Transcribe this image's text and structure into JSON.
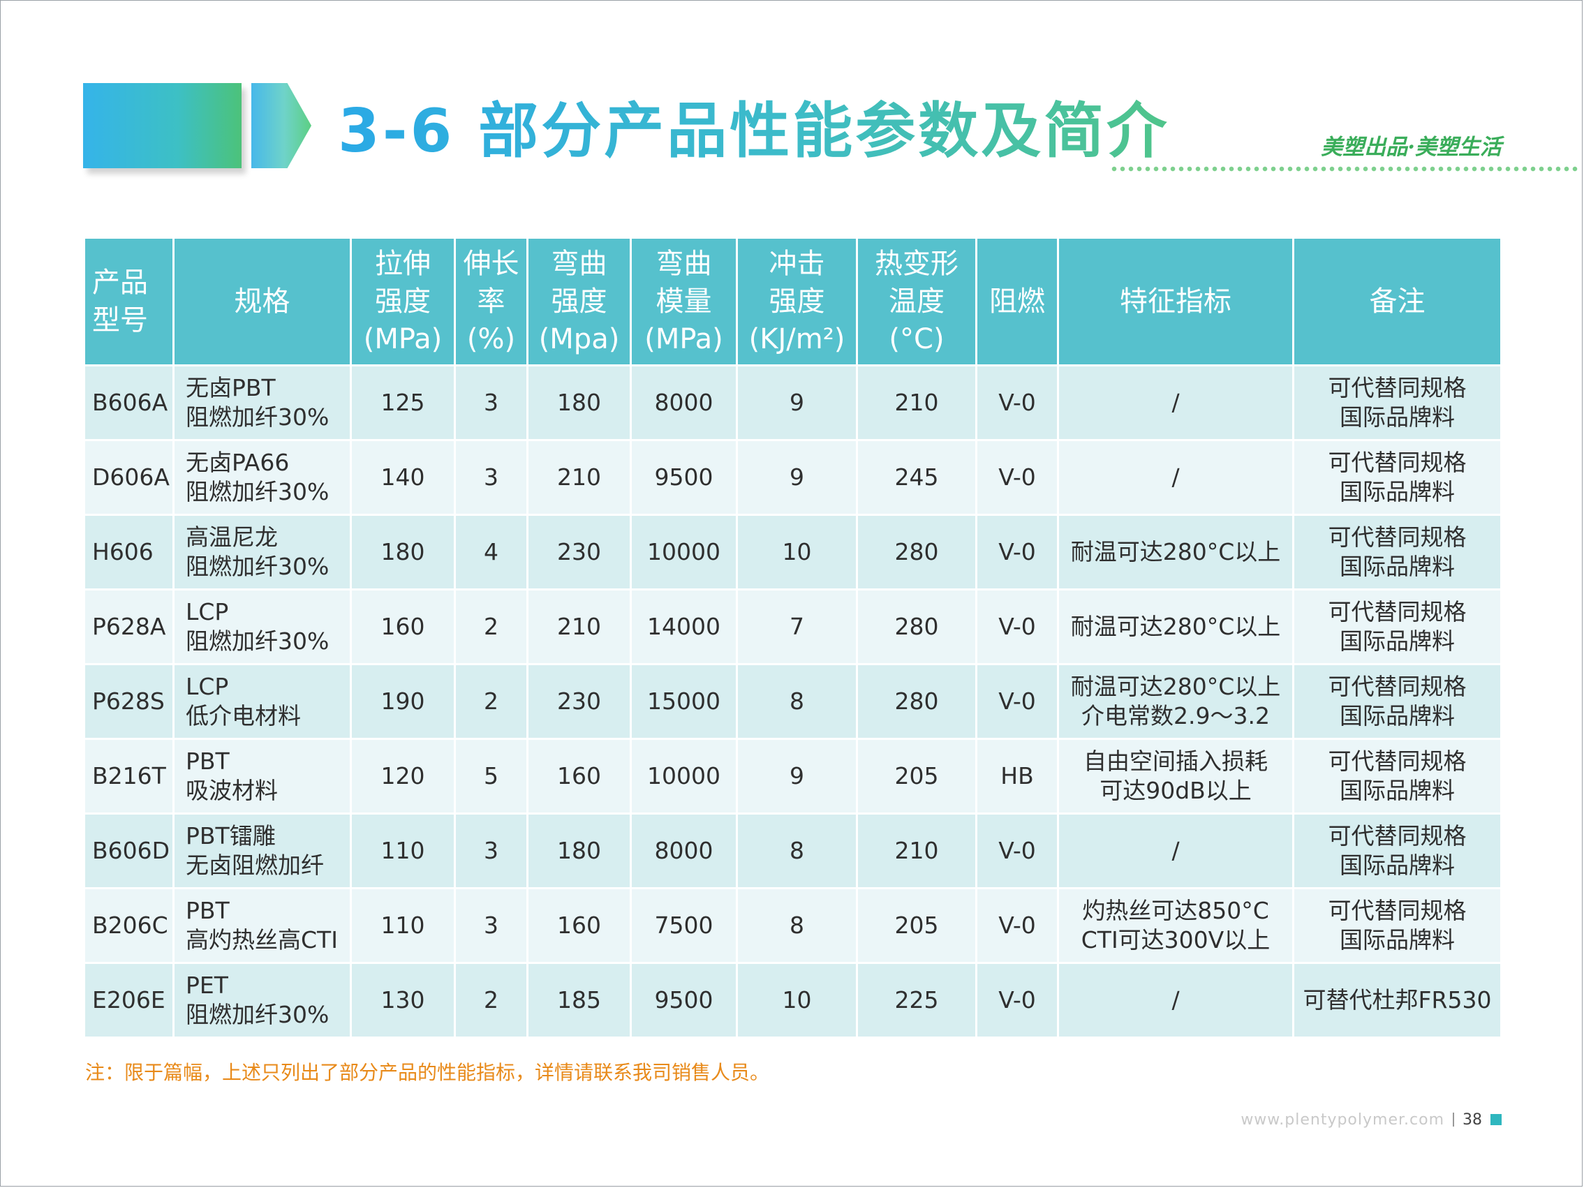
{
  "header": {
    "title": "3-6 部分产品性能参数及简介",
    "slogan": "美塑出品·美塑生活"
  },
  "table": {
    "columns": [
      "产品\n型号",
      "规格",
      "拉伸\n强度\n(MPa)",
      "伸长\n率\n(%)",
      "弯曲\n强度\n(Mpa)",
      "弯曲\n模量\n(MPa)",
      "冲击\n强度\n(KJ/m²)",
      "热变形\n温度\n(°C)",
      "阻燃",
      "特征指标",
      "备注"
    ],
    "rows": [
      {
        "model": "B606A",
        "spec": "无卤PBT\n阻燃加纤30%",
        "tensile": "125",
        "elong": "3",
        "flex_strength": "180",
        "flex_modulus": "8000",
        "impact": "9",
        "hdt": "210",
        "flame": "V-0",
        "feature": "/",
        "remark": "可代替同规格\n国际品牌料"
      },
      {
        "model": "D606A",
        "spec": "无卤PA66\n阻燃加纤30%",
        "tensile": "140",
        "elong": "3",
        "flex_strength": "210",
        "flex_modulus": "9500",
        "impact": "9",
        "hdt": "245",
        "flame": "V-0",
        "feature": "/",
        "remark": "可代替同规格\n国际品牌料"
      },
      {
        "model": "H606",
        "spec": "高温尼龙\n阻燃加纤30%",
        "tensile": "180",
        "elong": "4",
        "flex_strength": "230",
        "flex_modulus": "10000",
        "impact": "10",
        "hdt": "280",
        "flame": "V-0",
        "feature": "耐温可达280°C以上",
        "remark": "可代替同规格\n国际品牌料"
      },
      {
        "model": "P628A",
        "spec": "LCP\n阻燃加纤30%",
        "tensile": "160",
        "elong": "2",
        "flex_strength": "210",
        "flex_modulus": "14000",
        "impact": "7",
        "hdt": "280",
        "flame": "V-0",
        "feature": "耐温可达280°C以上",
        "remark": "可代替同规格\n国际品牌料"
      },
      {
        "model": "P628S",
        "spec": "LCP\n低介电材料",
        "tensile": "190",
        "elong": "2",
        "flex_strength": "230",
        "flex_modulus": "15000",
        "impact": "8",
        "hdt": "280",
        "flame": "V-0",
        "feature": "耐温可达280°C以上\n介电常数2.9～3.2",
        "remark": "可代替同规格\n国际品牌料"
      },
      {
        "model": "B216T",
        "spec": "PBT\n吸波材料",
        "tensile": "120",
        "elong": "5",
        "flex_strength": "160",
        "flex_modulus": "10000",
        "impact": "9",
        "hdt": "205",
        "flame": "HB",
        "feature": "自由空间插入损耗\n可达90dB以上",
        "remark": "可代替同规格\n国际品牌料"
      },
      {
        "model": "B606D",
        "spec": "PBT镭雕\n无卤阻燃加纤",
        "tensile": "110",
        "elong": "3",
        "flex_strength": "180",
        "flex_modulus": "8000",
        "impact": "8",
        "hdt": "210",
        "flame": "V-0",
        "feature": "/",
        "remark": "可代替同规格\n国际品牌料"
      },
      {
        "model": "B206C",
        "spec": "PBT\n高灼热丝高CTI",
        "tensile": "110",
        "elong": "3",
        "flex_strength": "160",
        "flex_modulus": "7500",
        "impact": "8",
        "hdt": "205",
        "flame": "V-0",
        "feature": "灼热丝可达850°C\nCTI可达300V以上",
        "remark": "可代替同规格\n国际品牌料"
      },
      {
        "model": "E206E",
        "spec": "PET\n阻燃加纤30%",
        "tensile": "130",
        "elong": "2",
        "flex_strength": "185",
        "flex_modulus": "9500",
        "impact": "10",
        "hdt": "225",
        "flame": "V-0",
        "feature": "/",
        "remark": "可替代杜邦FR530"
      }
    ]
  },
  "footnote": "注：限于篇幅，上述只列出了部分产品的性能指标，详情请联系我司销售人员。",
  "footer": {
    "url": "www.plentypolymer.com",
    "page": "38"
  },
  "colors": {
    "header_fill": "#56c1cd",
    "row_odd": "#d7eef0",
    "row_even": "#ebf6f8",
    "title_gradient_start": "#2aa9e6",
    "title_gradient_end": "#4fc48a",
    "slogan": "#3aad5a",
    "footnote": "#e88a1a",
    "accent_square": "#2fb7bf"
  }
}
